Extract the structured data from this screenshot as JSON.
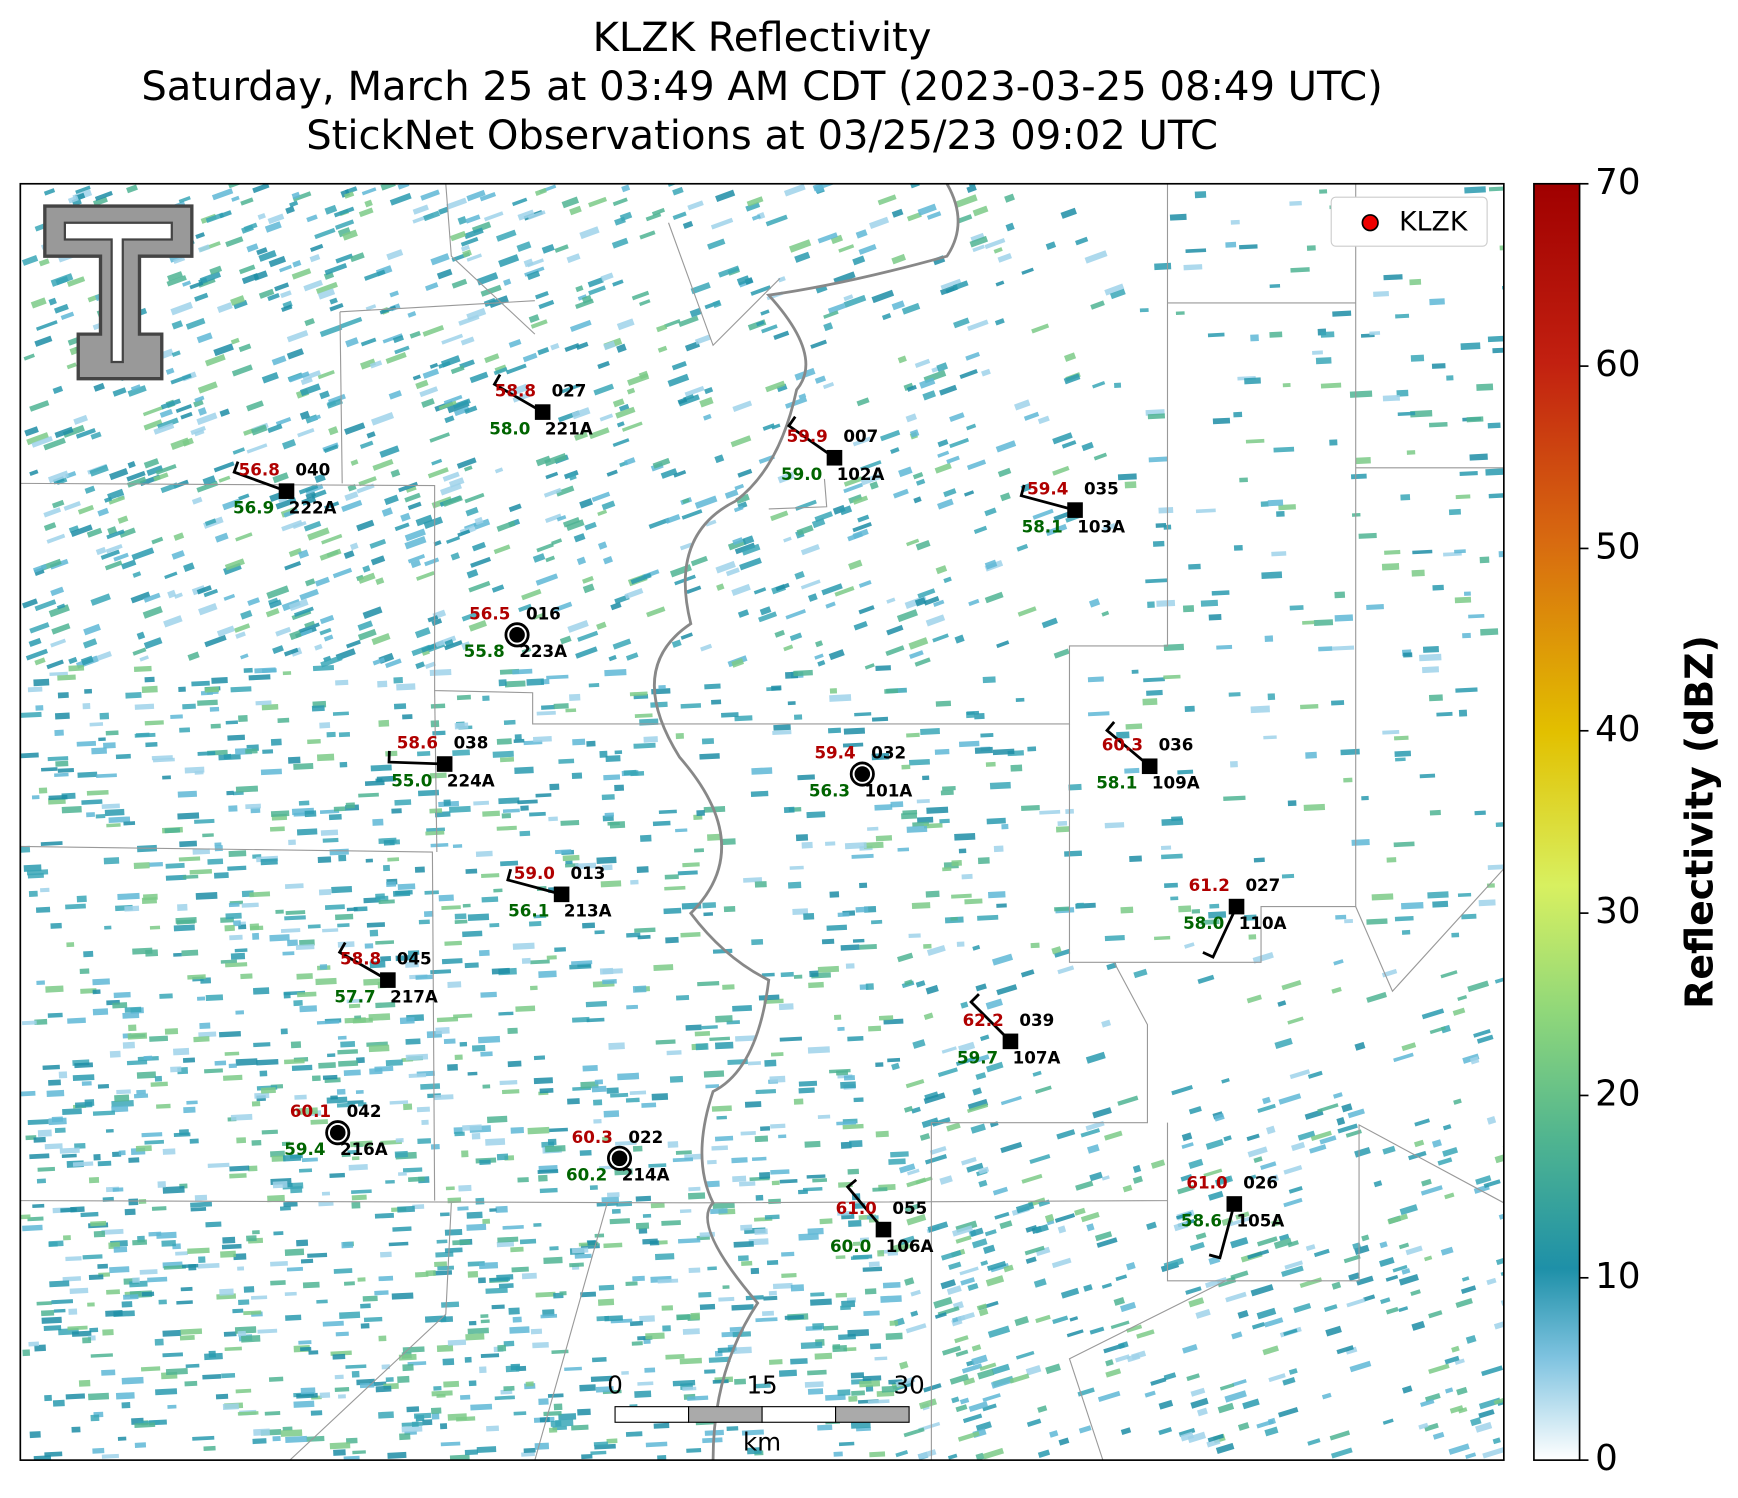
{
  "title": [
    "KLZK Reflectivity",
    "Saturday, March 25 at 03:49 AM CDT (2023-03-25 08:49 UTC)",
    "StickNet Observations at 03/25/23 09:02 UTC"
  ],
  "legend": "KLZK",
  "scale_bar": {
    "ticks": [
      0,
      15,
      30
    ],
    "unit": "km"
  },
  "colorbar": {
    "label": "Reflectivity (dBZ)",
    "lim": [
      0,
      70
    ],
    "ticks": [
      0,
      10,
      20,
      30,
      40,
      50,
      60,
      70
    ]
  },
  "stations": [
    {
      "temperature": "58.8",
      "dewpoint": "58.0",
      "wind": "027",
      "name": "221A"
    },
    {
      "temperature": "56.8",
      "dewpoint": "56.9",
      "wind": "040",
      "name": "222A"
    },
    {
      "temperature": "59.9",
      "dewpoint": "59.0",
      "wind": "007",
      "name": "102A"
    },
    {
      "temperature": "59.4",
      "dewpoint": "58.1",
      "wind": "035",
      "name": "103A"
    },
    {
      "temperature": "56.5",
      "dewpoint": "55.8",
      "wind": "016",
      "name": "223A"
    },
    {
      "temperature": "58.6",
      "dewpoint": "55.0",
      "wind": "038",
      "name": "224A"
    },
    {
      "temperature": "59.4",
      "dewpoint": "56.3",
      "wind": "032",
      "name": "101A"
    },
    {
      "temperature": "60.3",
      "dewpoint": "58.1",
      "wind": "036",
      "name": "109A"
    },
    {
      "temperature": "59.0",
      "dewpoint": "56.1",
      "wind": "013",
      "name": "213A"
    },
    {
      "temperature": "61.2",
      "dewpoint": "58.0",
      "wind": "027",
      "name": "110A"
    },
    {
      "temperature": "58.8",
      "dewpoint": "57.7",
      "wind": "045",
      "name": "217A"
    },
    {
      "temperature": "62.2",
      "dewpoint": "59.7",
      "wind": "039",
      "name": "107A"
    },
    {
      "temperature": "60.1",
      "dewpoint": "59.4",
      "wind": "042",
      "name": "216A"
    },
    {
      "temperature": "60.3",
      "dewpoint": "60.2",
      "wind": "022",
      "name": "214A"
    },
    {
      "temperature": "61.0",
      "dewpoint": "60.0",
      "wind": "055",
      "name": "106A"
    },
    {
      "temperature": "61.0",
      "dewpoint": "58.6",
      "wind": "026",
      "name": "105A"
    }
  ]
}
